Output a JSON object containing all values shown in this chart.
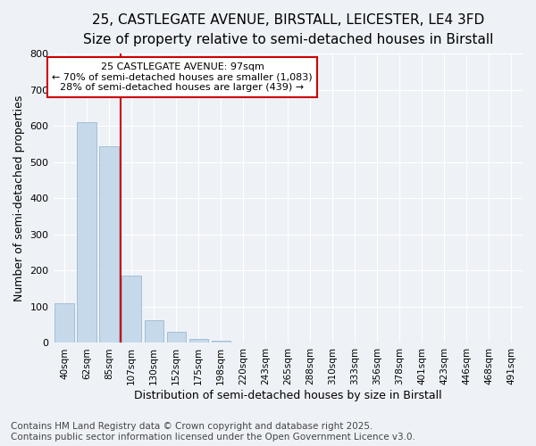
{
  "title_line1": "25, CASTLEGATE AVENUE, BIRSTALL, LEICESTER, LE4 3FD",
  "title_line2": "Size of property relative to semi-detached houses in Birstall",
  "xlabel": "Distribution of semi-detached houses by size in Birstall",
  "ylabel": "Number of semi-detached properties",
  "categories": [
    "40sqm",
    "62sqm",
    "85sqm",
    "107sqm",
    "130sqm",
    "152sqm",
    "175sqm",
    "198sqm",
    "220sqm",
    "243sqm",
    "265sqm",
    "288sqm",
    "310sqm",
    "333sqm",
    "356sqm",
    "378sqm",
    "401sqm",
    "423sqm",
    "446sqm",
    "468sqm",
    "491sqm"
  ],
  "values": [
    110,
    610,
    545,
    185,
    62,
    30,
    10,
    5,
    0,
    0,
    0,
    0,
    0,
    0,
    0,
    0,
    0,
    0,
    0,
    0,
    0
  ],
  "bar_color": "#c6d9ea",
  "bar_edge_color": "#9ab8d0",
  "vline_color": "#cc0000",
  "annotation_line1": "25 CASTLEGATE AVENUE: 97sqm",
  "annotation_line2": "← 70% of semi-detached houses are smaller (1,083)",
  "annotation_line3": "28% of semi-detached houses are larger (439) →",
  "annotation_box_color": "#cc0000",
  "ylim": [
    0,
    800
  ],
  "yticks": [
    0,
    100,
    200,
    300,
    400,
    500,
    600,
    700,
    800
  ],
  "footer_line1": "Contains HM Land Registry data © Crown copyright and database right 2025.",
  "footer_line2": "Contains public sector information licensed under the Open Government Licence v3.0.",
  "bg_color": "#eef2f7",
  "grid_color": "#ffffff",
  "title_fontsize": 11,
  "subtitle_fontsize": 9.5,
  "axis_label_fontsize": 9,
  "tick_fontsize": 8,
  "footer_fontsize": 7.5
}
